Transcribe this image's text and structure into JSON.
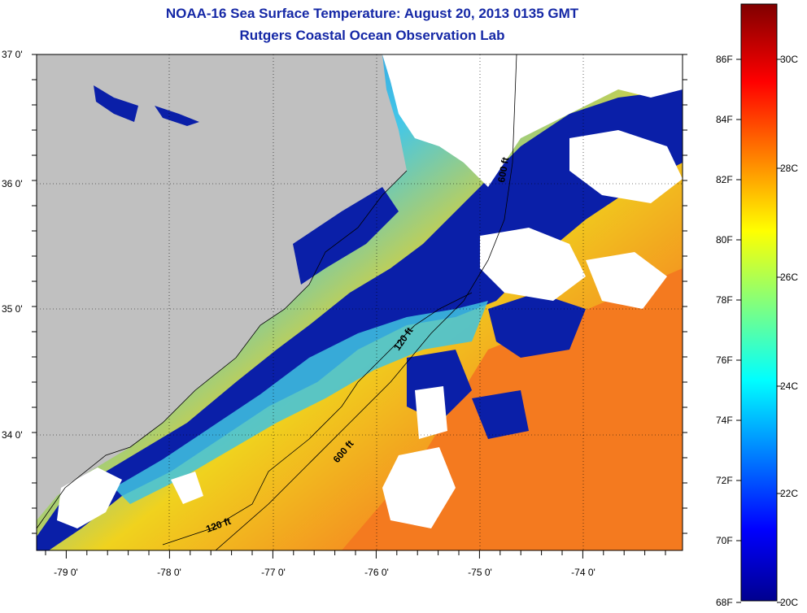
{
  "title": {
    "line1": "NOAA-16 Sea Surface Temperature:  August 20, 2013 0135 GMT",
    "line2": "Rutgers Coastal Ocean Observation Lab"
  },
  "map": {
    "lat_labels": [
      "37 0'",
      "36 0'",
      "35 0'",
      "34 0'"
    ],
    "lon_labels": [
      "-79 0'",
      "-78 0'",
      "-77 0'",
      "-76 0'",
      "-75 0'",
      "-74 0'"
    ],
    "depth_labels": [
      "120 ft",
      "600 ft",
      "120 ft",
      "600 ft"
    ],
    "colors": {
      "land": "#c0c0c0",
      "cloud": "#ffffff",
      "cold": "#00129a",
      "warm": "#f57a1e"
    }
  },
  "colorbar": {
    "fahrenheit_labels": [
      "86F",
      "84F",
      "82F",
      "80F",
      "78F",
      "76F",
      "74F",
      "72F",
      "70F",
      "68F"
    ],
    "celsius_labels": [
      "30C",
      "28C",
      "26C",
      "24C",
      "22C",
      "20C"
    ],
    "range_f": [
      68,
      88
    ],
    "range_c": [
      20,
      31
    ]
  }
}
